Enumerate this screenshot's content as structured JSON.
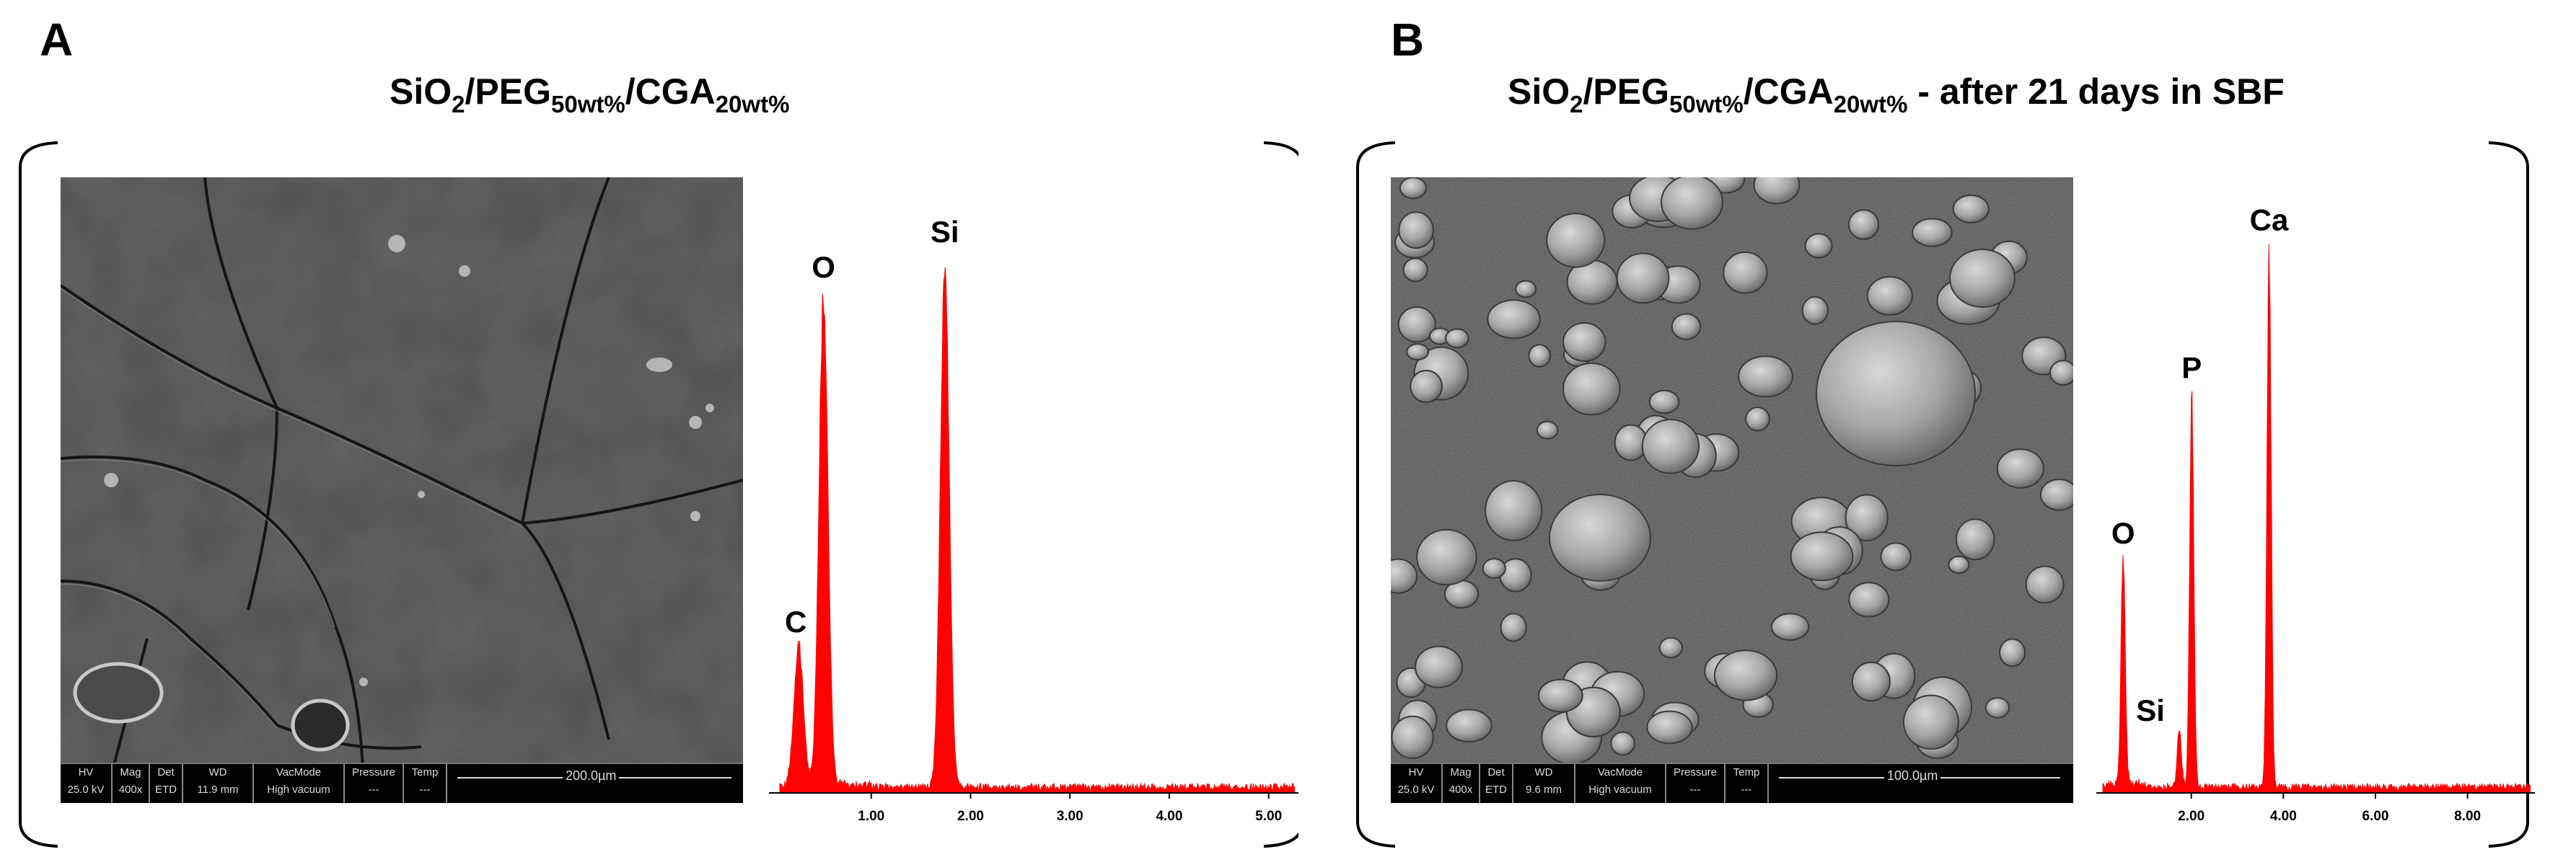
{
  "panels": [
    {
      "letter": "A",
      "title": {
        "t1": "SiO",
        "s1": "2",
        "t2": "/PEG",
        "s2": "50wt%",
        "t3": "/CGA",
        "s3": "20wt%",
        "t4": ""
      },
      "sem": {
        "hv_label": "HV",
        "hv_value": "25.0 kV",
        "mag_label": "Mag",
        "mag_value": "400x",
        "det_label": "Det",
        "det_value": "ETD",
        "wd_label": "WD",
        "wd_value": "11.9 mm",
        "vac_label": "VacMode",
        "vac_value": "High vacuum",
        "pressure_label": "Pressure",
        "pressure_value": "---",
        "temp_label": "Temp",
        "temp_value": "---",
        "scale": "200.0µm"
      }
    },
    {
      "letter": "B",
      "title": {
        "t1": "SiO",
        "s1": "2",
        "t2": "/PEG",
        "s2": "50wt%",
        "t3": "/CGA",
        "s3": "20wt%",
        "t4": " - after 21 days in SBF"
      },
      "sem": {
        "hv_label": "HV",
        "hv_value": "25.0 kV",
        "mag_label": "Mag",
        "mag_value": "400x",
        "det_label": "Det",
        "det_value": "ETD",
        "wd_label": "WD",
        "wd_value": "9.6 mm",
        "vac_label": "VacMode",
        "vac_value": "High vacuum",
        "pressure_label": "Pressure",
        "pressure_value": "---",
        "temp_label": "Temp",
        "temp_value": "---",
        "scale": "100.0µm"
      }
    }
  ],
  "colors": {
    "spectrum": "#ff0000",
    "sem_bg_a": "#3a3a3a",
    "sem_bg_b": "#5a5a5a"
  },
  "chart_data": [
    {
      "type": "area",
      "xlabel": "",
      "ylabel": "",
      "xlim": [
        0,
        5.3
      ],
      "ticks": [
        "1.00",
        "2.00",
        "3.00",
        "4.00",
        "5.00"
      ],
      "tick_values": [
        1,
        2,
        3,
        4,
        5
      ],
      "peaks": [
        {
          "label": "C",
          "x": 0.27,
          "height": 0.25
        },
        {
          "label": "O",
          "x": 0.52,
          "height": 0.85
        },
        {
          "label": "Si",
          "x": 1.74,
          "height": 0.91
        }
      ]
    },
    {
      "type": "area",
      "xlabel": "",
      "ylabel": "",
      "xlim": [
        0,
        9.4
      ],
      "ticks": [
        "2.00",
        "4.00",
        "6.00",
        "8.00"
      ],
      "tick_values": [
        2,
        4,
        6,
        8
      ],
      "peaks": [
        {
          "label": "O",
          "x": 0.52,
          "height": 0.4
        },
        {
          "label": "Si",
          "x": 1.74,
          "height": 0.1
        },
        {
          "label": "P",
          "x": 2.01,
          "height": 0.68
        },
        {
          "label": "Ca",
          "x": 3.69,
          "height": 0.93
        }
      ]
    }
  ]
}
